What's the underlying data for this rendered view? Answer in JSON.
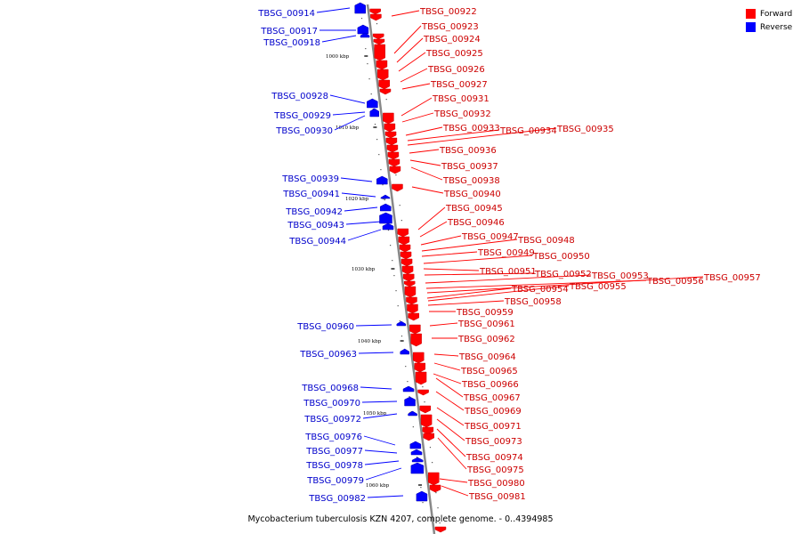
{
  "legend": {
    "forward_label": "Forward",
    "reverse_label": "Reverse",
    "forward_color": "#ff0000",
    "reverse_color": "#0000ff"
  },
  "caption": "Mycobacterium tuberculosis KZN 4207, complete genome. - 0..4394985",
  "scale_marks": [
    "1000 kbp",
    "1010 kbp",
    "1020 kbp",
    "1030 kbp",
    "1040 kbp",
    "1050 kbp",
    "1060 kbp"
  ],
  "forward_genes": [
    "TBSG_00922",
    "TBSG_00923",
    "TBSG_00924",
    "TBSG_00925",
    "TBSG_00926",
    "TBSG_00927",
    "TBSG_00931",
    "TBSG_00932",
    "TBSG_00933",
    "TBSG_00934",
    "TBSG_00935",
    "TBSG_00936",
    "TBSG_00937",
    "TBSG_00938",
    "TBSG_00940",
    "TBSG_00945",
    "TBSG_00946",
    "TBSG_00947",
    "TBSG_00948",
    "TBSG_00949",
    "TBSG_00950",
    "TBSG_00951",
    "TBSG_00952",
    "TBSG_00953",
    "TBSG_00956",
    "TBSG_00957",
    "TBSG_00954",
    "TBSG_00955",
    "TBSG_00958",
    "TBSG_00959",
    "TBSG_00961",
    "TBSG_00962",
    "TBSG_00964",
    "TBSG_00965",
    "TBSG_00966",
    "TBSG_00967",
    "TBSG_00969",
    "TBSG_00971",
    "TBSG_00973",
    "TBSG_00974",
    "TBSG_00975",
    "TBSG_00980",
    "TBSG_00981"
  ],
  "reverse_genes": [
    "TBSG_00914",
    "TBSG_00917",
    "TBSG_00918",
    "TBSG_00928",
    "TBSG_00929",
    "TBSG_00930",
    "TBSG_00939",
    "TBSG_00941",
    "TBSG_00942",
    "TBSG_00943",
    "TBSG_00944",
    "TBSG_00960",
    "TBSG_00963",
    "TBSG_00968",
    "TBSG_00970",
    "TBSG_00972",
    "TBSG_00976",
    "TBSG_00977",
    "TBSG_00978",
    "TBSG_00979",
    "TBSG_00982"
  ]
}
